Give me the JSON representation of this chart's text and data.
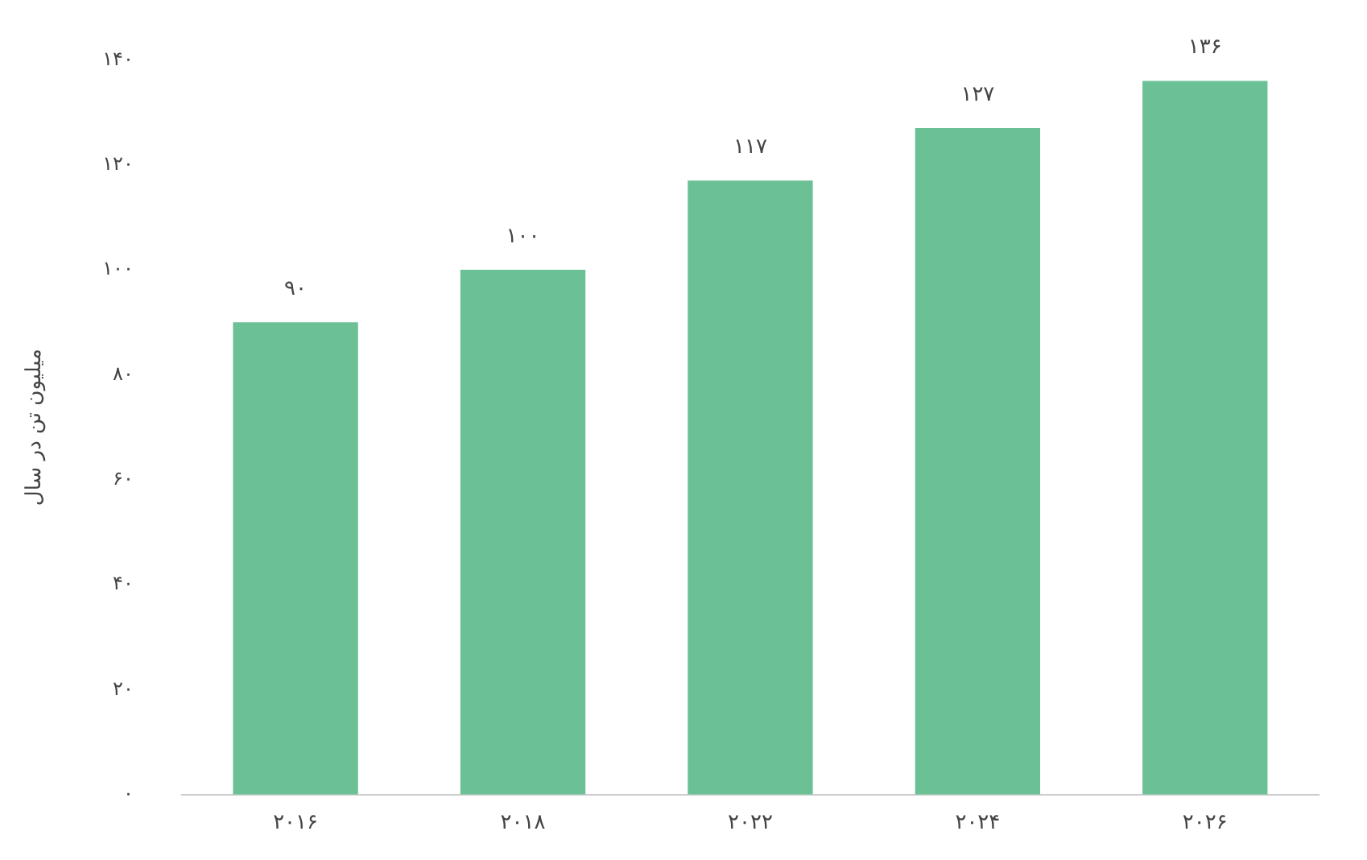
{
  "chart_data": {
    "type": "bar",
    "ylabel": "میلیون تن در سال",
    "categories": [
      "۲۰۱۶",
      "۲۰۱۸",
      "۲۰۲۲",
      "۲۰۲۴",
      "۲۰۲۶"
    ],
    "values": [
      90,
      100,
      117,
      127,
      136
    ],
    "value_labels": [
      "۹۰",
      "۱۰۰",
      "۱۱۷",
      "۱۲۷",
      "۱۳۶"
    ],
    "color": "#6cc095",
    "ylim": [
      0,
      140
    ],
    "yticks": [
      {
        "value": 0,
        "label": "۰"
      },
      {
        "value": 20,
        "label": "۲۰"
      },
      {
        "value": 40,
        "label": "۴۰"
      },
      {
        "value": 60,
        "label": "۶۰"
      },
      {
        "value": 80,
        "label": "۸۰"
      },
      {
        "value": 100,
        "label": "۱۰۰"
      },
      {
        "value": 120,
        "label": "۱۲۰"
      },
      {
        "value": 140,
        "label": "۱۴۰"
      }
    ],
    "grid": false,
    "legend": false
  }
}
